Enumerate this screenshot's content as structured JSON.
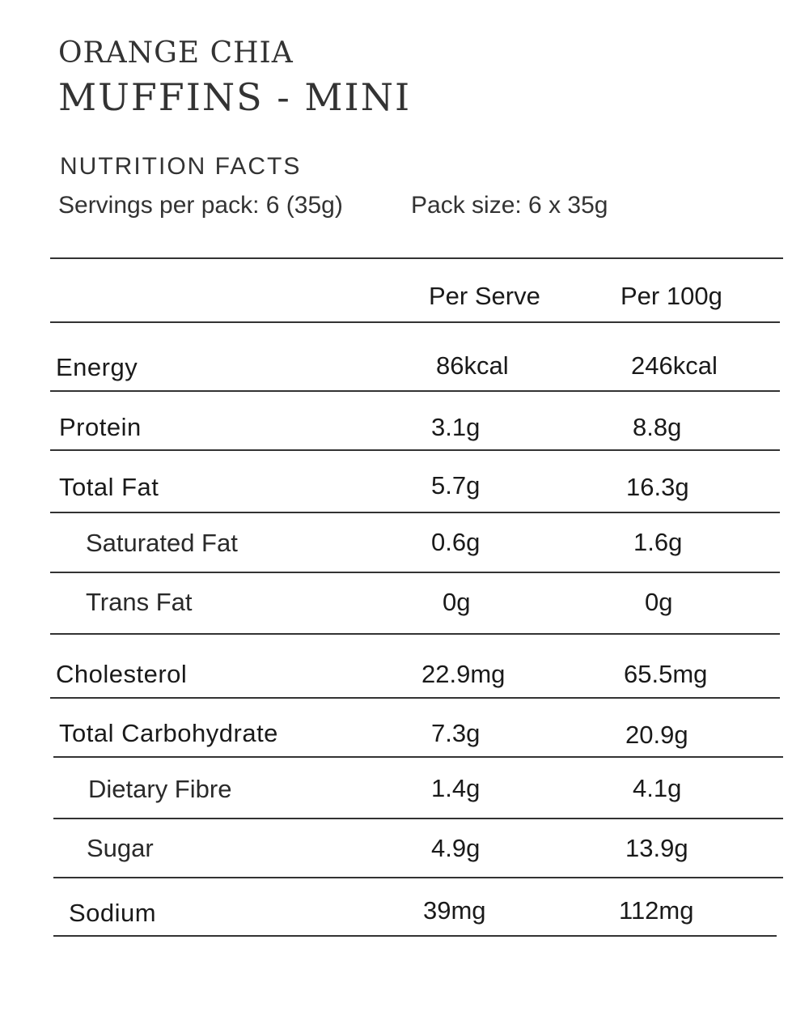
{
  "header": {
    "title_small": "ORANGE CHIA",
    "title_large": "MUFFINS - MINI"
  },
  "section_heading": "NUTRITION FACTS",
  "servings": "Servings per pack: 6 (35g)",
  "pack_size": "Pack size: 6 x 35g",
  "columns": {
    "per_serve": "Per Serve",
    "per_100g": "Per 100g"
  },
  "rows": [
    {
      "label": "Energy",
      "per_serve": "86kcal",
      "per_100g": "246kcal"
    },
    {
      "label": "Protein",
      "per_serve": "3.1g",
      "per_100g": "8.8g"
    },
    {
      "label": "Total Fat",
      "per_serve": "5.7g",
      "per_100g": "16.3g"
    },
    {
      "label": "Saturated Fat",
      "per_serve": "0.6g",
      "per_100g": "1.6g"
    },
    {
      "label": "Trans Fat",
      "per_serve": "0g",
      "per_100g": "0g"
    },
    {
      "label": "Cholesterol",
      "per_serve": "22.9mg",
      "per_100g": "65.5mg"
    },
    {
      "label": "Total Carbohydrate",
      "per_serve": "7.3g",
      "per_100g": "20.9g"
    },
    {
      "label": "Dietary Fibre",
      "per_serve": "1.4g",
      "per_100g": "4.1g"
    },
    {
      "label": "Sugar",
      "per_serve": "4.9g",
      "per_100g": "13.9g"
    },
    {
      "label": "Sodium",
      "per_serve": "39mg",
      "per_100g": "112mg"
    }
  ]
}
